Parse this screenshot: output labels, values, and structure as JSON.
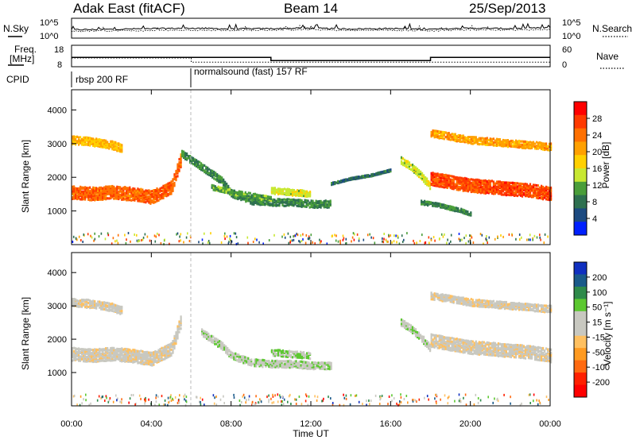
{
  "header": {
    "radar": "Adak East (fitACF)",
    "beam": "Beam 14",
    "date": "25/Sep/2013"
  },
  "strip_labels": {
    "nsky": "N.Sky",
    "nsearch": "N.Search",
    "freq": "Freq.",
    "freq_unit": "[MHz]",
    "nave": "Nave",
    "cpid": "CPID",
    "nsky_ticks": [
      "10^5",
      "10^0"
    ],
    "nsearch_ticks": [
      "10^5",
      "10^0"
    ],
    "freq_ticks": [
      "18",
      "8"
    ],
    "nave_ticks": [
      "60",
      "0"
    ]
  },
  "cpid_segments": [
    {
      "start_hour": 0,
      "end_hour": 6,
      "label": "rbsp 200 RF"
    },
    {
      "start_hour": 6,
      "end_hour": 24,
      "label": "normalsound (fast) 157 RF"
    }
  ],
  "axis": {
    "xlabel": "Time UT",
    "ylabel": "Slant Range [km]",
    "x_ticks": [
      "00:00",
      "04:00",
      "08:00",
      "12:00",
      "16:00",
      "20:00",
      "00:00"
    ],
    "y_ticks": [
      "1000",
      "2000",
      "3000",
      "4000"
    ]
  },
  "power_colorbar": {
    "label": "Power [dB]",
    "ticks": [
      "28",
      "24",
      "20",
      "16",
      "12",
      "8",
      "4"
    ],
    "colors": [
      "#ff0000",
      "#ff3a00",
      "#ff7000",
      "#ffa000",
      "#ffd000",
      "#c8e832",
      "#4a9e3a",
      "#2e7050",
      "#1c4a80",
      "#0020ff"
    ]
  },
  "velocity_colorbar": {
    "label": "Velocity [m s⁻¹]",
    "ticks": [
      "200",
      "100",
      "50",
      "15",
      "-15",
      "-50",
      "-100",
      "-200"
    ],
    "colors": [
      "#1030c0",
      "#1a5a8a",
      "#2e8a4a",
      "#5cc830",
      "#c8c8c0",
      "#c8c8c0",
      "#ffc060",
      "#ff9a20",
      "#ff6a10",
      "#ff2000",
      "#ff0000"
    ]
  },
  "chart_data": [
    {
      "type": "line",
      "title": "N.Sky / N.Search",
      "x": [
        0,
        2,
        4,
        6,
        8,
        10,
        12,
        14,
        16,
        18,
        20,
        22,
        24
      ],
      "series": [
        {
          "name": "N.Sky",
          "values": [
            2.0,
            2.1,
            2.3,
            2.4,
            2.2,
            2.3,
            2.4,
            2.2,
            2.3,
            2.1,
            2.4,
            2.3,
            2.5
          ]
        },
        {
          "name": "N.Search",
          "values": [
            1.6,
            1.7,
            1.8,
            1.9,
            1.8,
            1.9,
            2.0,
            1.8,
            1.9,
            1.7,
            2.0,
            1.9,
            2.1
          ]
        }
      ]
    },
    {
      "type": "line",
      "title": "Freq. / Nave",
      "x": [
        0,
        6,
        6,
        10,
        10,
        18,
        18,
        24
      ],
      "series": [
        {
          "name": "Freq.",
          "values": [
            12.5,
            12.5,
            12.5,
            12.5,
            10.8,
            10.8,
            12.5,
            12.5
          ]
        },
        {
          "name": "Nave",
          "values": [
            25,
            25,
            12,
            12,
            12,
            12,
            12,
            12
          ]
        }
      ]
    },
    {
      "type": "heatmap",
      "title": "Power [dB]",
      "xlabel": "Time UT",
      "ylabel": "Slant Range [km]",
      "xlim": [
        0,
        24
      ],
      "ylim": [
        0,
        4600
      ],
      "value_range": [
        0,
        30
      ],
      "bands": [
        {
          "t": [
            0,
            1,
            2,
            3,
            4,
            5,
            5.5
          ],
          "r": [
            1550,
            1500,
            1550,
            1500,
            1400,
            1700,
            2600
          ],
          "width": 400,
          "value": 24
        },
        {
          "t": [
            0,
            1,
            2,
            2.5
          ],
          "r": [
            3100,
            3050,
            2950,
            2850
          ],
          "width": 250,
          "value": 18
        },
        {
          "t": [
            5.5,
            6.5,
            7.5,
            8,
            9,
            10,
            11,
            12,
            13
          ],
          "r": [
            2700,
            2300,
            1900,
            1500,
            1300,
            1250,
            1250,
            1200,
            1200
          ],
          "width": 220,
          "value": 8
        },
        {
          "t": [
            7,
            8,
            9,
            10
          ],
          "r": [
            1700,
            1550,
            1450,
            1350
          ],
          "width": 150,
          "value": 10
        },
        {
          "t": [
            10,
            11,
            12
          ],
          "r": [
            1600,
            1550,
            1500
          ],
          "width": 200,
          "value": 14
        },
        {
          "t": [
            13,
            14,
            15,
            16
          ],
          "r": [
            1800,
            1950,
            2050,
            2200
          ],
          "width": 60,
          "value": 6
        },
        {
          "t": [
            16.5,
            17,
            17.5,
            18
          ],
          "r": [
            2500,
            2300,
            2050,
            1700
          ],
          "width": 220,
          "value": 14
        },
        {
          "t": [
            18,
            19,
            20,
            21,
            22,
            23,
            24
          ],
          "r": [
            1950,
            1850,
            1750,
            1700,
            1650,
            1600,
            1500
          ],
          "width": 400,
          "value": 26
        },
        {
          "t": [
            18,
            19,
            20,
            21,
            22,
            23,
            24
          ],
          "r": [
            3300,
            3200,
            3100,
            3050,
            3000,
            2950,
            2900
          ],
          "width": 220,
          "value": 20
        },
        {
          "t": [
            17.5,
            18.5,
            19.5,
            20
          ],
          "r": [
            1250,
            1150,
            1000,
            900
          ],
          "width": 120,
          "value": 8
        }
      ]
    },
    {
      "type": "heatmap",
      "title": "Velocity [m s⁻¹]",
      "xlabel": "Time UT",
      "ylabel": "Slant Range [km]",
      "xlim": [
        0,
        24
      ],
      "ylim": [
        0,
        4600
      ],
      "value_range": [
        -200,
        200
      ],
      "bands": [
        {
          "t": [
            0,
            1,
            2,
            3,
            4,
            5,
            5.5
          ],
          "r": [
            1550,
            1500,
            1550,
            1500,
            1400,
            1700,
            2600
          ],
          "width": 400,
          "value": 0
        },
        {
          "t": [
            0,
            1,
            2,
            2.5
          ],
          "r": [
            3100,
            3050,
            2950,
            2850
          ],
          "width": 250,
          "value": 0
        },
        {
          "t": [
            6.5,
            7.5,
            8,
            9,
            10,
            11,
            12,
            13
          ],
          "r": [
            2200,
            1800,
            1500,
            1300,
            1250,
            1250,
            1200,
            1200
          ],
          "width": 220,
          "value": 45
        },
        {
          "t": [
            10,
            11,
            12
          ],
          "r": [
            1600,
            1550,
            1500
          ],
          "width": 200,
          "value": 60
        },
        {
          "t": [
            16.5,
            17,
            17.5,
            18
          ],
          "r": [
            2500,
            2300,
            2050,
            1700
          ],
          "width": 220,
          "value": 40
        },
        {
          "t": [
            18,
            19,
            20,
            21,
            22,
            23,
            24
          ],
          "r": [
            1950,
            1850,
            1750,
            1700,
            1650,
            1600,
            1500
          ],
          "width": 400,
          "value": 0
        },
        {
          "t": [
            18,
            19,
            20,
            21,
            22,
            23,
            24
          ],
          "r": [
            3300,
            3200,
            3100,
            3050,
            3000,
            2950,
            2900
          ],
          "width": 220,
          "value": 0
        }
      ]
    }
  ]
}
